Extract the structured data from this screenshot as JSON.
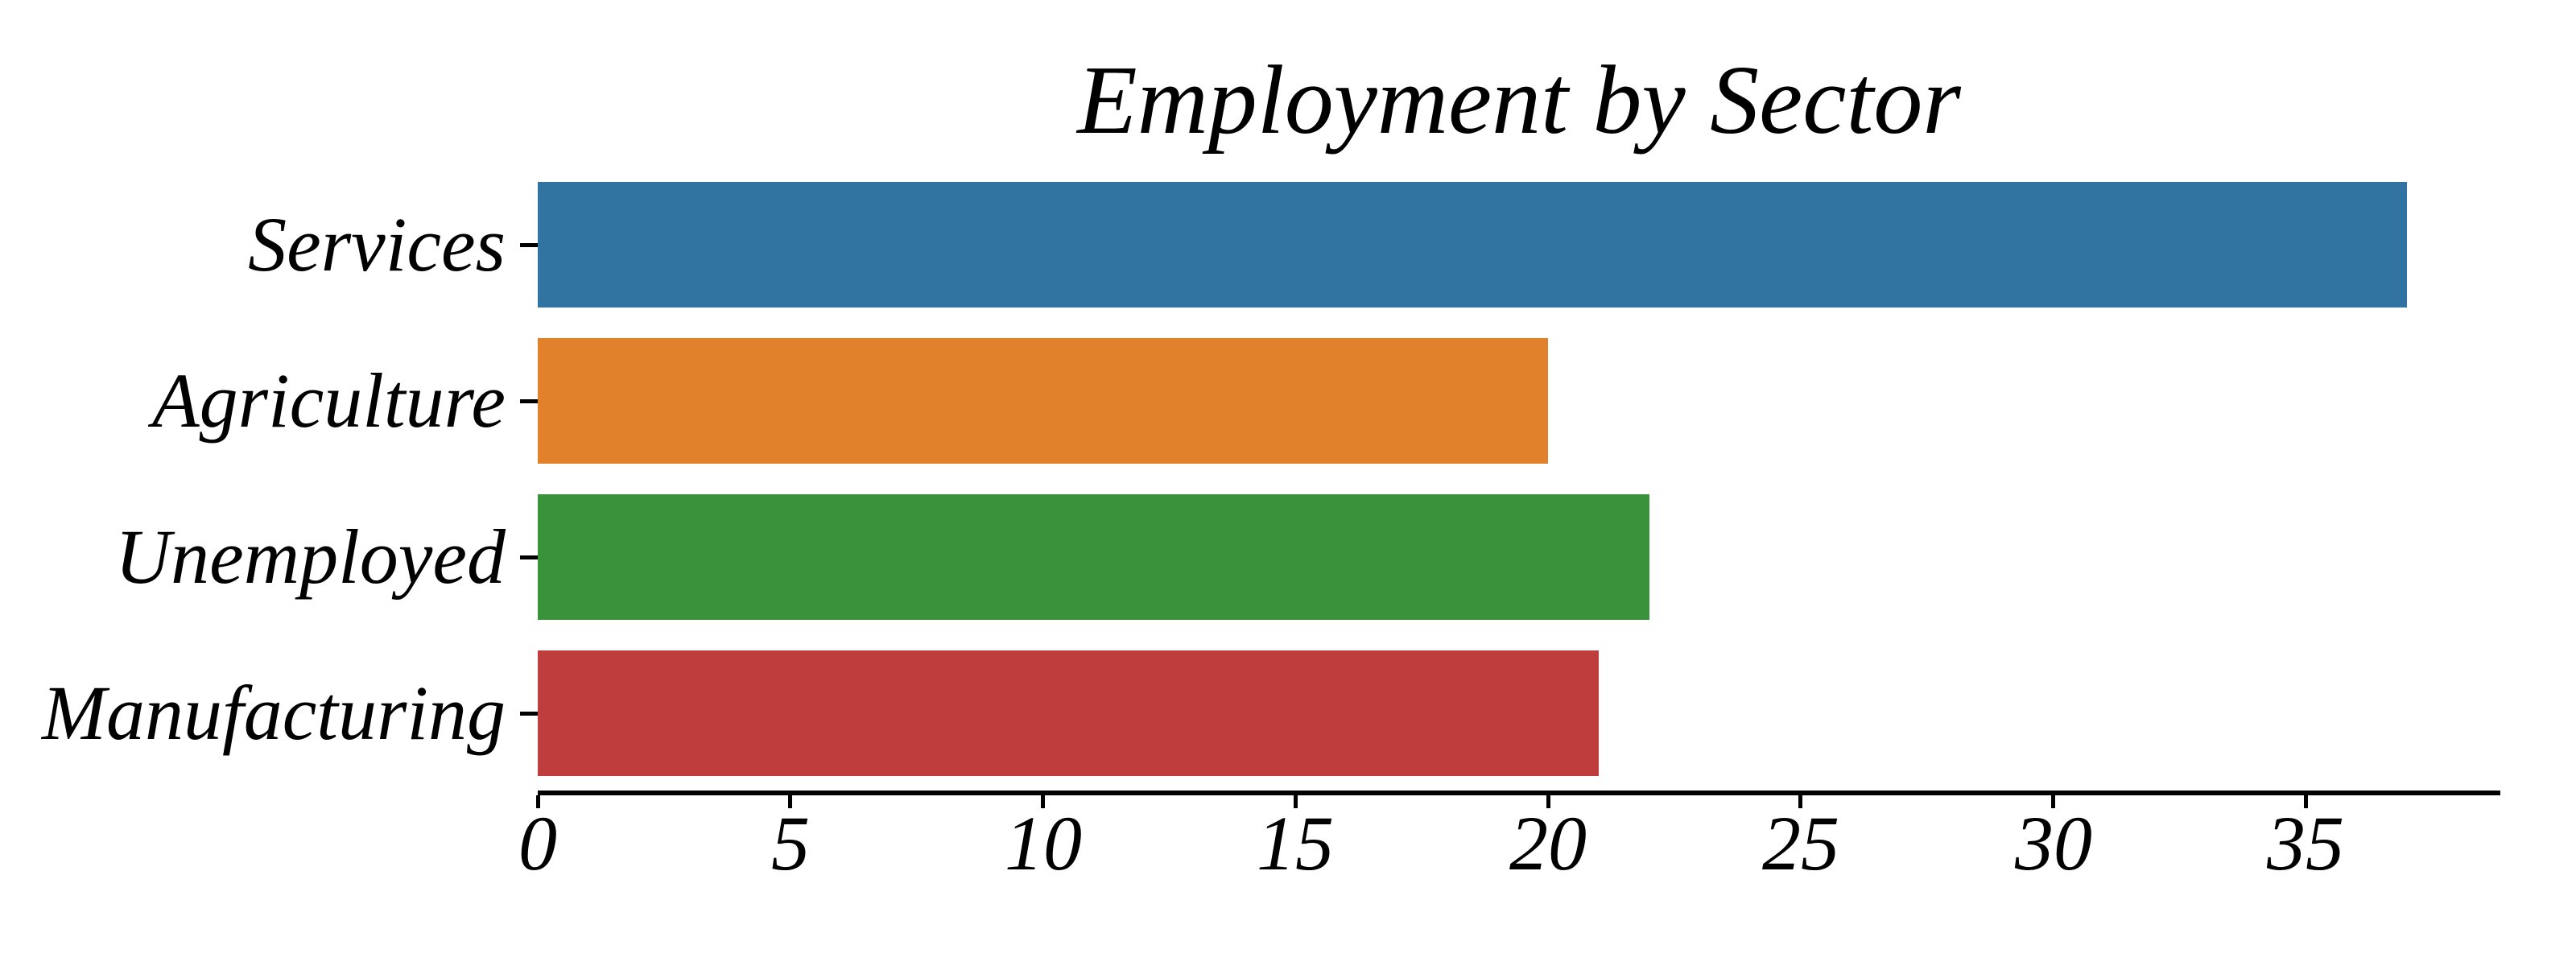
{
  "chart_data": {
    "type": "bar",
    "orientation": "horizontal",
    "title": "Employment by Sector",
    "categories": [
      "Services",
      "Agriculture",
      "Unemployed",
      "Manufacturing"
    ],
    "values": [
      37,
      20,
      22,
      21
    ],
    "bar_colors": [
      "#3274A1",
      "#E1812C",
      "#3A923A",
      "#C03D3E"
    ],
    "x_ticks": [
      0,
      5,
      10,
      15,
      20,
      25,
      30,
      35
    ],
    "xlim": [
      0,
      38.85
    ],
    "xlabel": "",
    "ylabel": "",
    "grid": false,
    "legend": false,
    "axis_color": "#000000",
    "text_color": "#000000",
    "background_color": "#FFFFFF",
    "font_style": "italic"
  }
}
